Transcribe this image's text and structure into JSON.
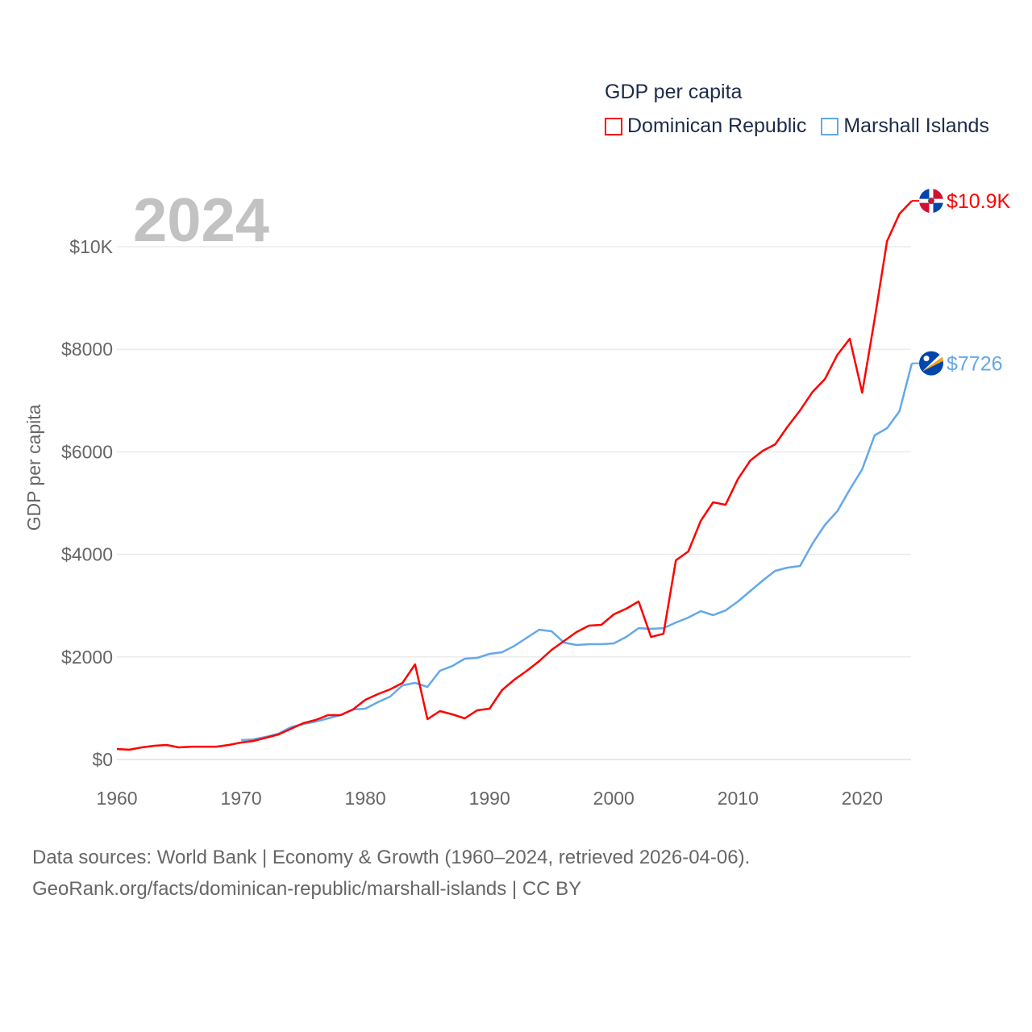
{
  "chart_data": {
    "type": "line",
    "title": "GDP per capita",
    "ylabel": "GDP per capita",
    "xlabel": "",
    "current_year": "2024",
    "xlim": [
      1960,
      2024
    ],
    "ylim": [
      0,
      11000
    ],
    "x_ticks": [
      1960,
      1970,
      1980,
      1990,
      2000,
      2010,
      2020
    ],
    "y_ticks": [
      {
        "value": 0,
        "label": "$0"
      },
      {
        "value": 2000,
        "label": "$2000"
      },
      {
        "value": 4000,
        "label": "$4000"
      },
      {
        "value": 6000,
        "label": "$6000"
      },
      {
        "value": 8000,
        "label": "$8000"
      },
      {
        "value": 10000,
        "label": "$10K"
      }
    ],
    "grid": true,
    "legend_position": "top-right",
    "series": [
      {
        "name": "Dominican Republic",
        "color": "#ff0000",
        "end_label": "$10.9K",
        "flag_icon": "dominican-republic-flag-icon",
        "start_year": 1960,
        "values": [
          204,
          190,
          236,
          267,
          283,
          236,
          250,
          250,
          250,
          283,
          330,
          362,
          425,
          487,
          597,
          707,
          770,
          865,
          865,
          975,
          1163,
          1273,
          1368,
          1493,
          1855,
          786,
          943,
          880,
          802,
          959,
          990,
          1352,
          1556,
          1729,
          1918,
          2138,
          2311,
          2484,
          2610,
          2625,
          2830,
          2940,
          3082,
          2390,
          2452,
          3883,
          4056,
          4653,
          5015,
          4967,
          5470,
          5832,
          6021,
          6146,
          6492,
          6807,
          7168,
          7420,
          7891,
          8206,
          7153,
          8583,
          10108,
          10642,
          10894
        ]
      },
      {
        "name": "Marshall Islands",
        "color": "#64a8ea",
        "end_label": "$7726",
        "flag_icon": "marshall-islands-flag-icon",
        "start_year": 1970,
        "values": [
          377,
          393,
          440,
          503,
          629,
          692,
          739,
          802,
          865,
          975,
          990,
          1116,
          1226,
          1446,
          1493,
          1415,
          1729,
          1823,
          1965,
          1981,
          2059,
          2091,
          2216,
          2374,
          2531,
          2500,
          2280,
          2232,
          2248,
          2248,
          2264,
          2390,
          2562,
          2547,
          2562,
          2672,
          2767,
          2893,
          2814,
          2908,
          3082,
          3286,
          3490,
          3679,
          3742,
          3773,
          4213,
          4575,
          4842,
          5266,
          5659,
          6320,
          6461,
          6791,
          7726
        ]
      }
    ]
  },
  "footer": {
    "line1": "Data sources: World Bank | Economy & Growth (1960–2024, retrieved 2026-04-06).",
    "line2": "GeoRank.org/facts/dominican-republic/marshall-islands | CC BY"
  }
}
